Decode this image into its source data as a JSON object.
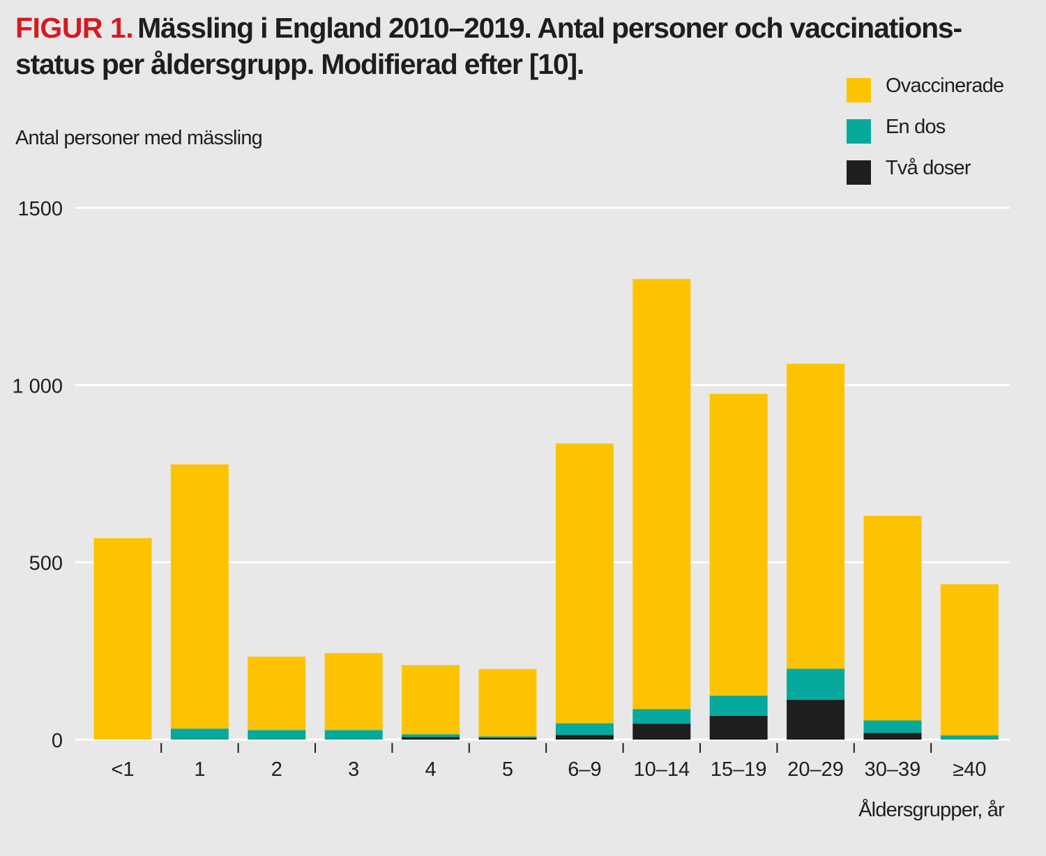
{
  "figure": {
    "label": "FIGUR 1.",
    "title": "Mässling i England 2010–2019. Antal personer och vaccinations-status per åldersgrupp. Modifierad efter [10]."
  },
  "chart_data": {
    "type": "bar",
    "stacked": true,
    "title": "Mässling i England 2010–2019. Antal personer och vaccinationsstatus per åldersgrupp. Modifierad efter [10].",
    "xlabel": "Åldersgrupper, år",
    "ylabel": "Antal personer med mässling",
    "ylim": [
      0,
      1500
    ],
    "yticks": [
      0,
      500,
      1000,
      1500
    ],
    "ytick_labels": [
      "0",
      "500",
      "1 000",
      "1500"
    ],
    "grid": true,
    "legend_position": "top-right",
    "categories": [
      "<1",
      "1",
      "2",
      "3",
      "4",
      "5",
      "6–9",
      "10–14",
      "15–19",
      "20–29",
      "30–39",
      "≥40"
    ],
    "series": [
      {
        "name": "Två doser",
        "color": "#1e1e1e",
        "values": [
          0,
          0,
          0,
          0,
          7,
          5,
          13,
          45,
          67,
          112,
          19,
          0
        ]
      },
      {
        "name": "En dos",
        "color": "#06a99d",
        "values": [
          0,
          31,
          27,
          27,
          8,
          4,
          33,
          41,
          57,
          88,
          35,
          12
        ]
      },
      {
        "name": "Ovaccinerade",
        "color": "#fdc300",
        "values": [
          568,
          745,
          207,
          217,
          195,
          190,
          789,
          1213,
          851,
          860,
          577,
          426
        ]
      }
    ],
    "totals": [
      568,
      776,
      234,
      244,
      210,
      199,
      835,
      1299,
      975,
      1060,
      631,
      438
    ]
  },
  "legend": [
    {
      "label": "Ovaccinerade",
      "color": "#fdc300"
    },
    {
      "label": "En dos",
      "color": "#06a99d"
    },
    {
      "label": "Två doser",
      "color": "#1e1e1e"
    }
  ]
}
